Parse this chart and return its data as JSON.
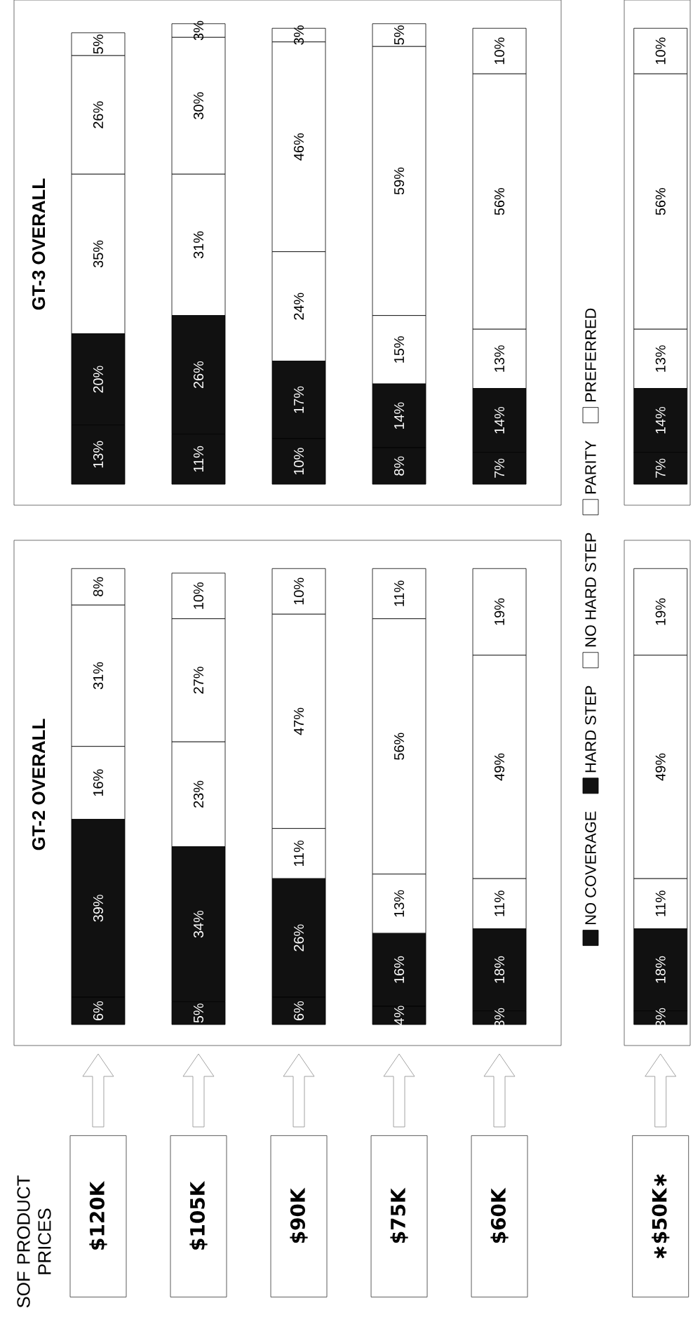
{
  "chart_data": [
    {
      "type": "bar",
      "stacked": true,
      "title": "GT-2 OVERALL",
      "annotations": [
        "SOF PRODUCT PRICES"
      ],
      "categories": [
        "$120K",
        "$105K",
        "$90K",
        "$75K",
        "$60K"
      ],
      "tick_labels": "x",
      "legend": "right",
      "series": [
        {
          "name": "NO COVERAGE",
          "color": "#111111",
          "values": [
            6,
            5,
            6,
            4,
            3
          ],
          "value_labels": [
            "6%",
            "5%",
            "6%",
            "4%",
            "3%"
          ]
        },
        {
          "name": "HARD STEP",
          "color": "#111111",
          "values": [
            39,
            34,
            26,
            16,
            18
          ],
          "value_labels": [
            "39%",
            "34%",
            "26%",
            "16%",
            "18%"
          ]
        },
        {
          "name": "NO HARD STEP",
          "color": "#ffffff",
          "values": [
            16,
            23,
            11,
            13,
            11
          ],
          "value_labels": [
            "16%",
            "23%",
            "11%",
            "13%",
            "11%"
          ]
        },
        {
          "name": "PARITY",
          "color": "#ffffff",
          "values": [
            31,
            27,
            47,
            56,
            49
          ],
          "value_labels": [
            "31%",
            "27%",
            "47%",
            "56%",
            "49%"
          ]
        },
        {
          "name": "PREFERRED",
          "color": "#ffffff",
          "values": [
            8,
            10,
            10,
            11,
            19
          ],
          "value_labels": [
            "8%",
            "10%",
            "10%",
            "11%",
            "19%"
          ]
        }
      ]
    },
    {
      "type": "bar",
      "stacked": true,
      "title": "GT-3 OVERALL",
      "categories": [
        null,
        null,
        null,
        null,
        null
      ],
      "tick_labels": false,
      "series": [
        {
          "color": "#111111",
          "values": [
            13,
            11,
            10,
            8,
            7
          ],
          "value_labels": [
            "13%",
            "11%",
            "10%",
            "8%",
            "7%"
          ]
        },
        {
          "color": "#111111",
          "values": [
            20,
            26,
            17,
            14,
            14
          ],
          "value_labels": [
            "20%",
            "26%",
            "17%",
            "14%",
            "14%"
          ]
        },
        {
          "color": "#ffffff",
          "values": [
            35,
            31,
            24,
            15,
            13
          ],
          "value_labels": [
            "35%",
            "31%",
            "24%",
            "15%",
            "13%"
          ]
        },
        {
          "color": "#ffffff",
          "values": [
            26,
            30,
            46,
            59,
            56
          ],
          "value_labels": [
            "26%",
            "30%",
            "46%",
            "59%",
            "56%"
          ]
        },
        {
          "color": "#ffffff",
          "values": [
            5,
            3,
            3,
            5,
            10
          ],
          "value_labels": [
            "5%",
            "3%",
            "3%",
            "5%",
            "10%"
          ]
        }
      ]
    },
    {
      "type": "bar",
      "stacked": true,
      "categories": [
        "∗$50K∗"
      ],
      "tick_labels": "x",
      "series": [
        {
          "color": "#111111",
          "values": [
            3
          ],
          "value_labels": [
            "3%"
          ]
        },
        {
          "color": "#111111",
          "values": [
            18
          ],
          "value_labels": [
            "18%"
          ]
        },
        {
          "color": "#ffffff",
          "values": [
            11
          ],
          "value_labels": [
            "11%"
          ]
        },
        {
          "color": "#ffffff",
          "values": [
            49
          ],
          "value_labels": [
            "49%"
          ]
        },
        {
          "color": "#ffffff",
          "values": [
            19
          ],
          "value_labels": [
            "19%"
          ]
        }
      ]
    },
    {
      "type": "bar",
      "stacked": true,
      "categories": [
        null
      ],
      "tick_labels": false,
      "series": [
        {
          "color": "#111111",
          "values": [
            7
          ],
          "value_labels": [
            "7%"
          ]
        },
        {
          "color": "#111111",
          "values": [
            14
          ],
          "value_labels": [
            "14%"
          ]
        },
        {
          "color": "#ffffff",
          "values": [
            13
          ],
          "value_labels": [
            "13%"
          ]
        },
        {
          "color": "#ffffff",
          "values": [
            56
          ],
          "value_labels": [
            "56%"
          ]
        },
        {
          "color": "#ffffff",
          "values": [
            10
          ],
          "value_labels": [
            "10%"
          ]
        }
      ]
    }
  ]
}
